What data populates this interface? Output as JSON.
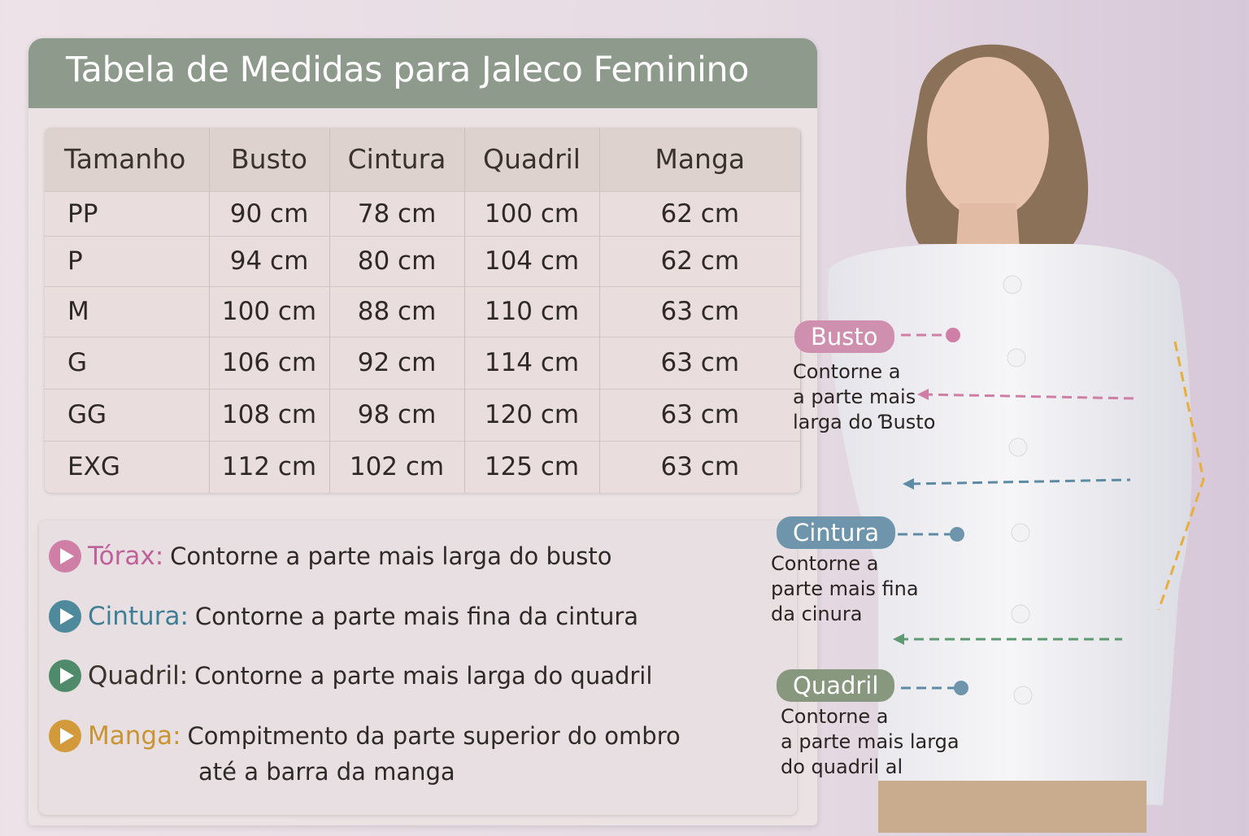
{
  "title": "Tabela de Medidas para Jaleco Feminino",
  "table": {
    "headers": [
      "Tamanho",
      "Busto",
      "Cintura",
      "Quadril",
      "Manga"
    ],
    "rows": [
      [
        "PP",
        "90 cm",
        "78 cm",
        "100 cm",
        "62 cm"
      ],
      [
        "P",
        "94 cm",
        "80 cm",
        "104 cm",
        "62 cm"
      ],
      [
        "M",
        "100 cm",
        "88 cm",
        "110 cm",
        "63 cm"
      ],
      [
        "G",
        "106 cm",
        "92 cm",
        "114 cm",
        "63 cm"
      ],
      [
        "GG",
        "108 cm",
        "98 cm",
        "120 cm",
        "63 cm"
      ],
      [
        "EXG",
        "112 cm",
        "102 cm",
        "125 cm",
        "63 cm"
      ]
    ]
  },
  "legend": [
    {
      "label": "Tórax:",
      "text": "Contorne a parte mais larga do busto",
      "color": "#c96f9c",
      "icon": "play-circle-icon"
    },
    {
      "label": "Cintura:",
      "text": "Contorne a parte mais fina da cintura",
      "color": "#4f8a9c",
      "icon": "play-circle-icon"
    },
    {
      "label": "Quadril:",
      "text": "Contorne a parte mais larga do quadril",
      "color": "#4f8a6a",
      "label_color": "#3a322c",
      "icon": "play-circle-icon"
    },
    {
      "label": "Manga:",
      "text": "Compitmento da parte superior do ombro",
      "text2": "até a barra da manga",
      "color": "#d29a3a",
      "icon": "play-circle-icon"
    }
  ],
  "annotations": [
    {
      "label": "Busto",
      "lines": [
        "Contorne a",
        "a parte mais",
        "larga do Ɓusto"
      ],
      "color": "#cf8fae"
    },
    {
      "label": "Cintura",
      "lines": [
        "Contorne a",
        "parte mais fina",
        "da cinura"
      ],
      "color": "#6e95ab"
    },
    {
      "label": "Quadril",
      "lines": [
        "Contorne a",
        "a parte mais larga",
        "do quadril al"
      ],
      "color": "#87987f"
    }
  ],
  "colors": {
    "header_bg": "#8e9a8c",
    "busto": "#d07a9f",
    "cintura": "#4f7f99",
    "quadril": "#5a8a66",
    "manga": "#e0a83a"
  }
}
